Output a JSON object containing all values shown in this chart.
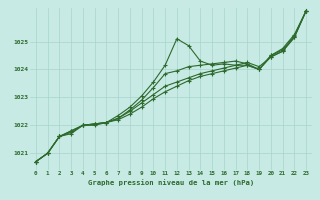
{
  "xlabel": "Graphe pression niveau de la mer (hPa)",
  "bg_color": "#c8eae4",
  "grid_color": "#a8d4cc",
  "line_color": "#2d6a2d",
  "marker_color": "#2d6a2d",
  "xlim": [
    -0.5,
    23.5
  ],
  "ylim": [
    1020.4,
    1026.2
  ],
  "yticks": [
    1021,
    1022,
    1023,
    1024,
    1025
  ],
  "xticks": [
    0,
    1,
    2,
    3,
    4,
    5,
    6,
    7,
    8,
    9,
    10,
    11,
    12,
    13,
    14,
    15,
    16,
    17,
    18,
    19,
    20,
    21,
    22,
    23
  ],
  "line1": [
    1020.7,
    1021.0,
    1021.6,
    1021.8,
    1022.0,
    1022.05,
    1022.1,
    1022.35,
    1022.65,
    1023.05,
    1023.55,
    1024.15,
    1025.1,
    1024.85,
    1024.3,
    1024.15,
    1024.2,
    1024.15,
    1024.15,
    1024.0,
    1024.5,
    1024.75,
    1025.25,
    1026.1
  ],
  "line2": [
    1020.7,
    1021.0,
    1021.6,
    1021.8,
    1022.0,
    1022.05,
    1022.1,
    1022.25,
    1022.55,
    1022.9,
    1023.35,
    1023.85,
    1023.95,
    1024.1,
    1024.15,
    1024.2,
    1024.25,
    1024.3,
    1024.2,
    1024.0,
    1024.5,
    1024.7,
    1025.2,
    1026.1
  ],
  "line3": [
    1020.7,
    1021.0,
    1021.6,
    1021.7,
    1022.0,
    1022.05,
    1022.1,
    1022.2,
    1022.4,
    1022.65,
    1022.95,
    1023.2,
    1023.4,
    1023.6,
    1023.75,
    1023.85,
    1023.95,
    1024.05,
    1024.15,
    1024.0,
    1024.45,
    1024.65,
    1025.15,
    1026.1
  ],
  "line4": [
    1020.7,
    1021.0,
    1021.6,
    1021.75,
    1022.0,
    1022.0,
    1022.1,
    1022.25,
    1022.5,
    1022.8,
    1023.1,
    1023.4,
    1023.55,
    1023.7,
    1023.85,
    1023.95,
    1024.05,
    1024.15,
    1024.25,
    1024.1,
    1024.45,
    1024.65,
    1025.15,
    1026.1
  ]
}
